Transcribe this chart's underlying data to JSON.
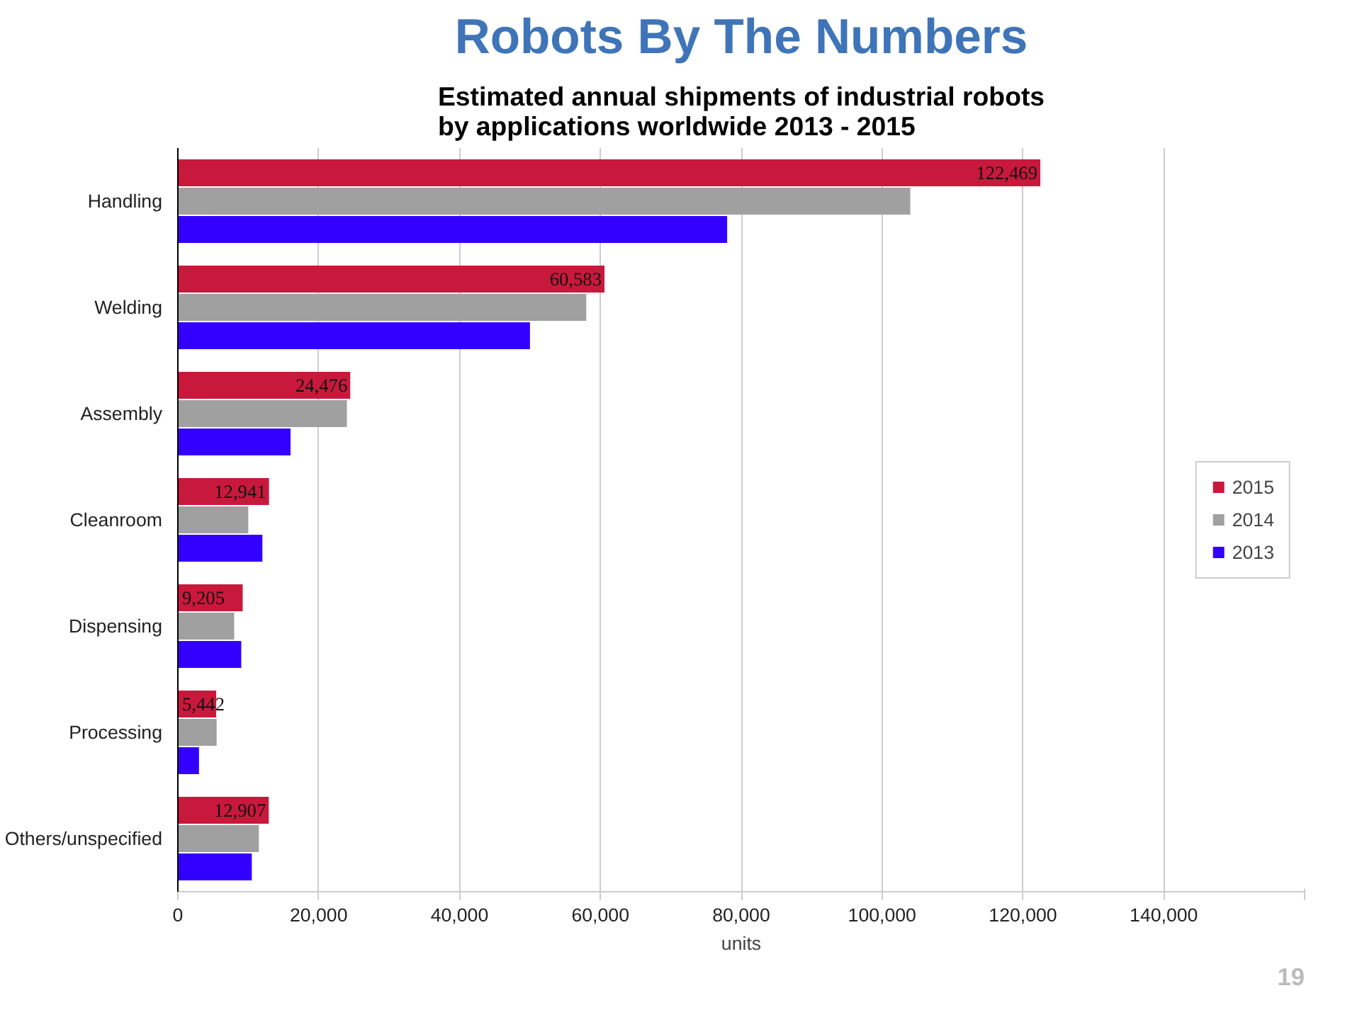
{
  "chart_data": {
    "type": "bar",
    "orientation": "horizontal",
    "title": "Robots By The Numbers",
    "subtitle": "Estimated annual shipments of industrial robots\nby applications worldwide 2013 - 2015",
    "xlabel": "units",
    "categories": [
      "Handling",
      "Welding",
      "Assembly",
      "Cleanroom",
      "Dispensing",
      "Processing",
      "Others/unspecified"
    ],
    "series": [
      {
        "name": "2015",
        "color": "#c8193c",
        "values": [
          122469,
          60583,
          24476,
          12941,
          9205,
          5442,
          12907
        ],
        "value_labels": [
          "122,469",
          "60,583",
          "24,476",
          "12,941",
          "9,205",
          "5,442",
          "12,907"
        ]
      },
      {
        "name": "2014",
        "color": "#a0a0a0",
        "values": [
          104000,
          58000,
          24000,
          10000,
          8000,
          5500,
          11500
        ]
      },
      {
        "name": "2013",
        "color": "#3300ff",
        "values": [
          78000,
          50000,
          16000,
          12000,
          9000,
          3000,
          10500
        ]
      }
    ],
    "xlim": [
      0,
      160000
    ],
    "xticks": [
      {
        "value": 0,
        "label": "0"
      },
      {
        "value": 20000,
        "label": "20,000"
      },
      {
        "value": 40000,
        "label": "40,000"
      },
      {
        "value": 60000,
        "label": "60,000"
      },
      {
        "value": 80000,
        "label": "80,000"
      },
      {
        "value": 100000,
        "label": "100,000"
      },
      {
        "value": 120000,
        "label": "120,000"
      },
      {
        "value": 140000,
        "label": "140,000"
      },
      {
        "value": 160000,
        "label": null
      }
    ],
    "grid": "x",
    "legend": "right",
    "annotations": [
      "19"
    ]
  }
}
